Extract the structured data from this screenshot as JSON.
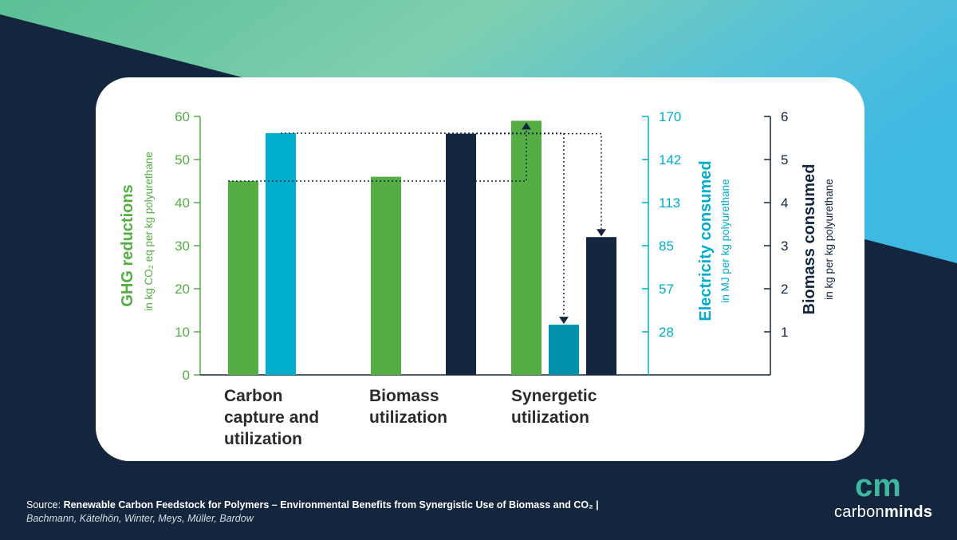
{
  "colors": {
    "green": "#55ae43",
    "cyan": "#00aecb",
    "dark_cyan": "#0091ad",
    "navy": "#13263d",
    "text_dark": "#2b2b2b"
  },
  "chart_data": {
    "type": "bar",
    "categories": [
      "Carbon capture and utilization",
      "Biomass utilization",
      "Synergetic utilization"
    ],
    "category_lines": [
      [
        "Carbon",
        "capture and",
        "utilization"
      ],
      [
        "Biomass",
        "utilization"
      ],
      [
        "Synergetic",
        "utilization"
      ]
    ],
    "axes": {
      "ghg": {
        "title": "GHG reductions",
        "subtitle": "in kg CO₂ eq per kg polyurethane",
        "ticks": [
          "0",
          "10",
          "20",
          "30",
          "40",
          "50",
          "60"
        ],
        "ylim": [
          0,
          60
        ],
        "color": "#55ae43"
      },
      "electricity": {
        "title": "Electricity consumed",
        "subtitle": "in MJ per kg polyurethane",
        "ticks": [
          "28",
          "57",
          "85",
          "113",
          "142",
          "170"
        ],
        "ylim": [
          0,
          170
        ],
        "color": "#00aecb"
      },
      "biomass": {
        "title": "Biomass consumed",
        "subtitle": "in kg per kg polyurethane",
        "ticks": [
          "1",
          "2",
          "3",
          "4",
          "5",
          "6"
        ],
        "ylim": [
          0,
          6
        ],
        "color": "#13263d"
      }
    },
    "series": [
      {
        "axis": "ghg",
        "values": [
          45,
          46,
          59
        ]
      },
      {
        "axis": "electricity",
        "values": [
          159,
          null,
          33
        ]
      },
      {
        "axis": "biomass",
        "values": [
          null,
          5.6,
          3.2
        ]
      }
    ],
    "annotations": [
      {
        "type": "dotted-arrow",
        "from": "Carbon capture and utilization GHG",
        "to": "Synergetic utilization GHG"
      },
      {
        "type": "dotted-arrow",
        "from": "Carbon capture and utilization electricity",
        "to": "Synergetic utilization electricity"
      },
      {
        "type": "dotted-arrow",
        "from": "Biomass utilization biomass",
        "to": "Synergetic utilization biomass"
      }
    ],
    "grid": false
  },
  "footer": {
    "source_prefix": "Source:",
    "source_title": "Renewable Carbon Feedstock for Polymers – Environmental Benefits from Synergistic Use of Biomass and CO₂ |",
    "authors": "Bachmann, Kätelhön, Winter, Meys, Müller, Bardow"
  },
  "brand": {
    "logo_letters": "cm",
    "name_light": "carbon",
    "name_bold": "minds"
  }
}
